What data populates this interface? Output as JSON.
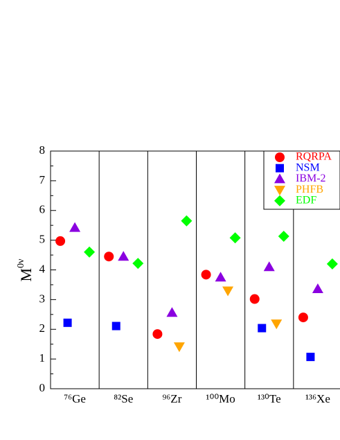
{
  "chart_data": {
    "type": "scatter",
    "y_label": [
      "M",
      "0ν"
    ],
    "categories": [
      "⁷⁶Ge",
      "⁸²Se",
      "⁹⁶Zr",
      "¹⁰⁰Mo",
      "¹³⁰Te",
      "¹³⁶Xe"
    ],
    "series": [
      {
        "name": "RQRPA",
        "color": "#ff0000",
        "marker": "circle",
        "values": [
          4.97,
          4.45,
          1.84,
          3.84,
          3.02,
          2.4
        ]
      },
      {
        "name": "NSM",
        "color": "#0000ff",
        "marker": "square",
        "values": [
          2.22,
          2.11,
          null,
          null,
          2.04,
          1.07
        ]
      },
      {
        "name": "IBM-2",
        "color": "#8a00e0",
        "marker": "triangle-up",
        "values": [
          5.42,
          4.45,
          2.56,
          3.75,
          4.1,
          3.36
        ]
      },
      {
        "name": "PHFB",
        "color": "#ffa500",
        "marker": "triangle-down",
        "values": [
          null,
          null,
          1.42,
          3.3,
          2.19,
          null
        ]
      },
      {
        "name": "EDF",
        "color": "#00ff00",
        "marker": "diamond",
        "values": [
          4.6,
          4.22,
          5.65,
          5.08,
          5.13,
          4.2
        ]
      }
    ],
    "ylim": [
      0,
      8
    ],
    "yticks": [
      0,
      1,
      2,
      3,
      4,
      5,
      6,
      7,
      8
    ],
    "yticks_minor": [
      0.5,
      1.5,
      2.5,
      3.5,
      4.5,
      5.5,
      6.5,
      7.5
    ],
    "legend": "upper right",
    "grid": false
  }
}
